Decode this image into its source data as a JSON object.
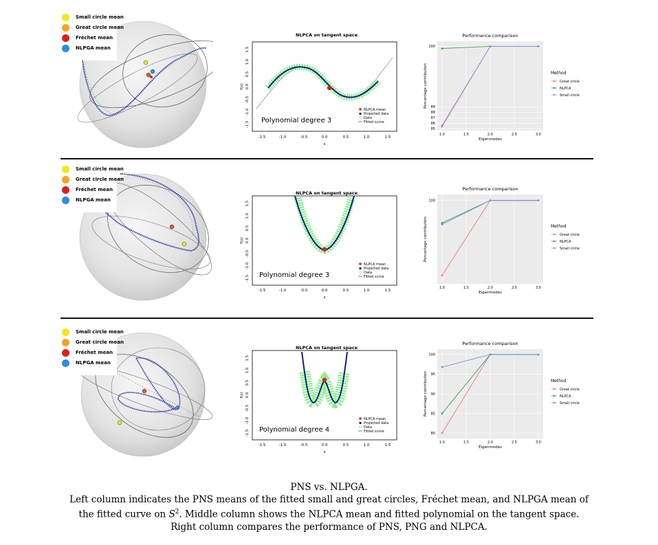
{
  "legend": {
    "items": [
      {
        "label": "Small circle mean",
        "color": "#f5e61c"
      },
      {
        "label": "Great circle mean",
        "color": "#f0a51c"
      },
      {
        "label": "Fréchet mean",
        "color": "#e01d1d"
      },
      {
        "label": "NLPGA mean",
        "color": "#2a8fe0"
      }
    ]
  },
  "rows": [
    {
      "tangent_title": "NLPCA on tangent space",
      "poly_label": "Polynomial degree 3",
      "tangent_legend": [
        "NLPCA mean",
        "Projected data",
        "Data",
        "Fitted curve"
      ],
      "perf_title": "Performance comparison"
    },
    {
      "tangent_title": "NLPCA on tangent space",
      "poly_label": "Polynomial degree 3",
      "tangent_legend": [
        "NLPCA mean",
        "Projected data",
        "Data",
        "Fitted curve"
      ],
      "perf_title": "Performance comparison"
    },
    {
      "tangent_title": "NLPCA on tangent space",
      "poly_label": "Polynomial degree 4",
      "tangent_legend": [
        "NLPCA mean",
        "Projected data",
        "Data",
        "Fitted curve"
      ],
      "perf_title": "Performance comparison"
    }
  ],
  "tangent_axes": {
    "xlabel": "x",
    "ylabel": "f(x)",
    "xticks": [
      "-1.5",
      "-1.0",
      "-0.5",
      "0.0",
      "0.5",
      "1.0",
      "1.5"
    ],
    "yticks": [
      "-1.5",
      "-1.0",
      "-0.5",
      "0.0",
      "0.5",
      "1.0",
      "1.5"
    ]
  },
  "perf_axes": {
    "xlabel": "Eigenmodes",
    "ylabel": "Percentage contribution",
    "legend_title": "Method",
    "legend_items": [
      "Great circle",
      "NLPCA",
      "Small circle"
    ],
    "series_colors": [
      "#f07b72",
      "#2aa845",
      "#7b92e8"
    ]
  },
  "chart_data": [
    {
      "type": "line",
      "title": "Performance comparison",
      "xlabel": "Eigenmodes",
      "ylabel": "Percentage contribution",
      "x": [
        1,
        2,
        3
      ],
      "xticks": [
        "1.0",
        "1.5",
        "2.0",
        "2.5",
        "3.0"
      ],
      "yticks": [
        "85",
        "86",
        "87",
        "88",
        "89",
        "100"
      ],
      "ylim": [
        85.3,
        100.3
      ],
      "series": [
        {
          "name": "Great circle",
          "values": [
            85.4,
            100,
            100
          ]
        },
        {
          "name": "NLPCA",
          "values": [
            99.6,
            100,
            100
          ]
        },
        {
          "name": "Small circle",
          "values": [
            85.6,
            100,
            100
          ]
        }
      ]
    },
    {
      "type": "line",
      "title": "Performance comparison",
      "xlabel": "Eigenmodes",
      "ylabel": "Percentage contribution",
      "x": [
        1,
        2,
        3
      ],
      "xticks": [
        "1.0",
        "1.5",
        "2.0",
        "2.5",
        "3.0"
      ],
      "yticks": [
        "100"
      ],
      "ylim": [
        84,
        100.5
      ],
      "series": [
        {
          "name": "Great circle",
          "values": [
            85,
            100,
            100
          ]
        },
        {
          "name": "NLPCA",
          "values": [
            95.5,
            100,
            100
          ]
        },
        {
          "name": "Small circle",
          "values": [
            95.2,
            100,
            100
          ]
        }
      ]
    },
    {
      "type": "line",
      "title": "Performance comparison",
      "xlabel": "Eigenmodes",
      "ylabel": "Percentage contribution",
      "x": [
        1,
        2,
        3
      ],
      "xticks": [
        "1.0",
        "1.5",
        "2.0",
        "2.5",
        "3.0"
      ],
      "yticks": [
        "80",
        "85",
        "90",
        "95",
        "100"
      ],
      "ylim": [
        79.5,
        100.5
      ],
      "series": [
        {
          "name": "Great circle",
          "values": [
            80,
            100,
            100
          ]
        },
        {
          "name": "NLPCA",
          "values": [
            85,
            100,
            100
          ]
        },
        {
          "name": "Small circle",
          "values": [
            96.8,
            100,
            100
          ]
        }
      ]
    }
  ],
  "caption": {
    "title": "PNS vs. NLPGA.",
    "line1": "Left column indicates the PNS means of the fitted small and great circles, Fréchet mean, and NLPGA mean of",
    "line2a": "the fitted curve on ",
    "line2_math": "S",
    "line2_sup": "2",
    "line2b": ". Middle column shows the NLPCA mean and fitted polynomial on the tangent space.",
    "line3": "Right column compares the performance of PNS, PNG and NLPCA."
  }
}
